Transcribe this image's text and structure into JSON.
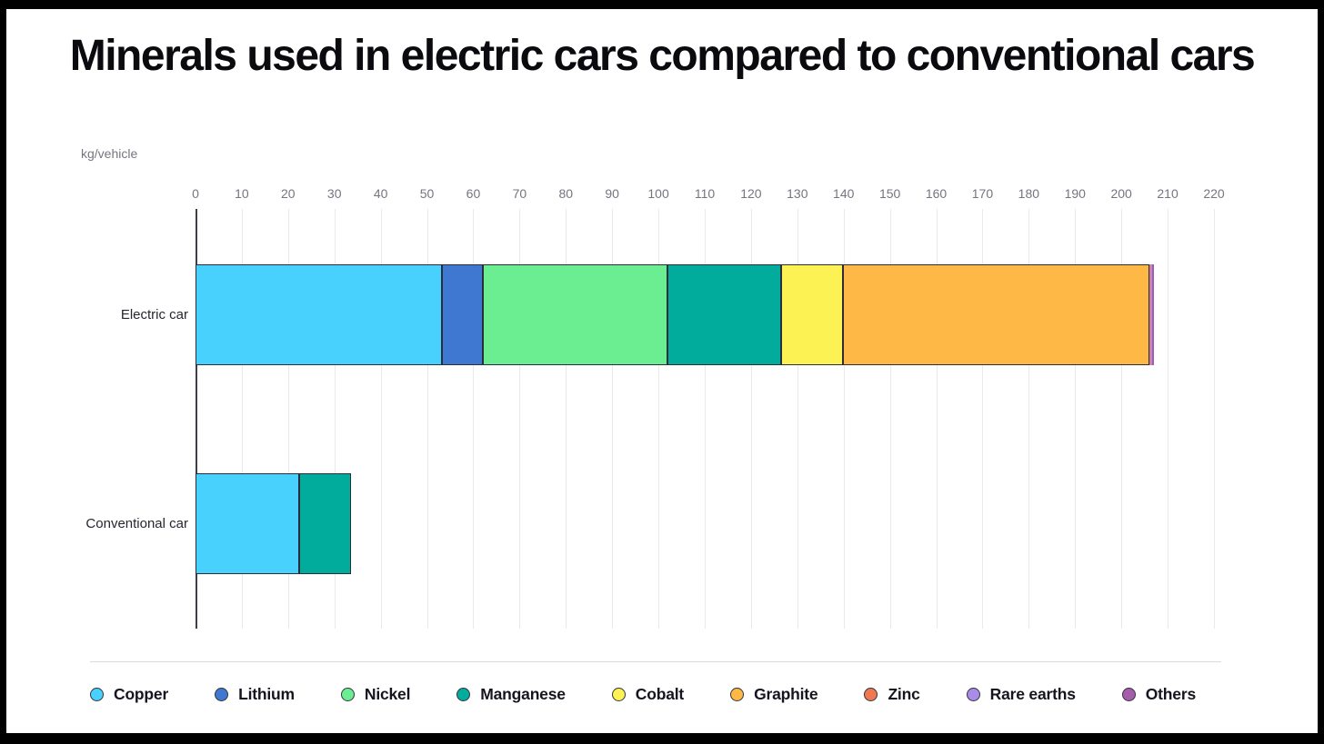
{
  "title": "Minerals used in electric cars compared to conventional cars",
  "chart_data": {
    "type": "bar",
    "orientation": "horizontal",
    "stacked": true,
    "title": "Minerals used in electric cars compared to conventional cars",
    "unit_label": "kg/vehicle",
    "categories": [
      "Electric car",
      "Conventional car"
    ],
    "series": [
      {
        "name": "Copper",
        "color": "#47D1FC",
        "values": [
          53.2,
          22.3
        ]
      },
      {
        "name": "Lithium",
        "color": "#3F78D1",
        "values": [
          8.9,
          0
        ]
      },
      {
        "name": "Nickel",
        "color": "#6BEE91",
        "values": [
          39.9,
          0
        ]
      },
      {
        "name": "Manganese",
        "color": "#01AC9C",
        "values": [
          24.5,
          11.2
        ]
      },
      {
        "name": "Cobalt",
        "color": "#FDF254",
        "values": [
          13.3,
          0
        ]
      },
      {
        "name": "Graphite",
        "color": "#FDB845",
        "values": [
          66.3,
          0
        ]
      },
      {
        "name": "Zinc",
        "color": "#F07850",
        "values": [
          0.1,
          0
        ]
      },
      {
        "name": "Rare earths",
        "color": "#A98BE8",
        "values": [
          0.5,
          0
        ]
      },
      {
        "name": "Others",
        "color": "#A55CAB",
        "values": [
          0.3,
          0
        ]
      }
    ],
    "xlim": [
      0,
      220
    ],
    "x_ticks": [
      0,
      10,
      20,
      30,
      40,
      50,
      60,
      70,
      80,
      90,
      100,
      110,
      120,
      130,
      140,
      150,
      160,
      170,
      180,
      190,
      200,
      210,
      220
    ],
    "grid": true,
    "legend_position": "bottom",
    "frame_color": "#000000",
    "background_color": "#ffffff",
    "axis_text_color": "#75757f"
  }
}
